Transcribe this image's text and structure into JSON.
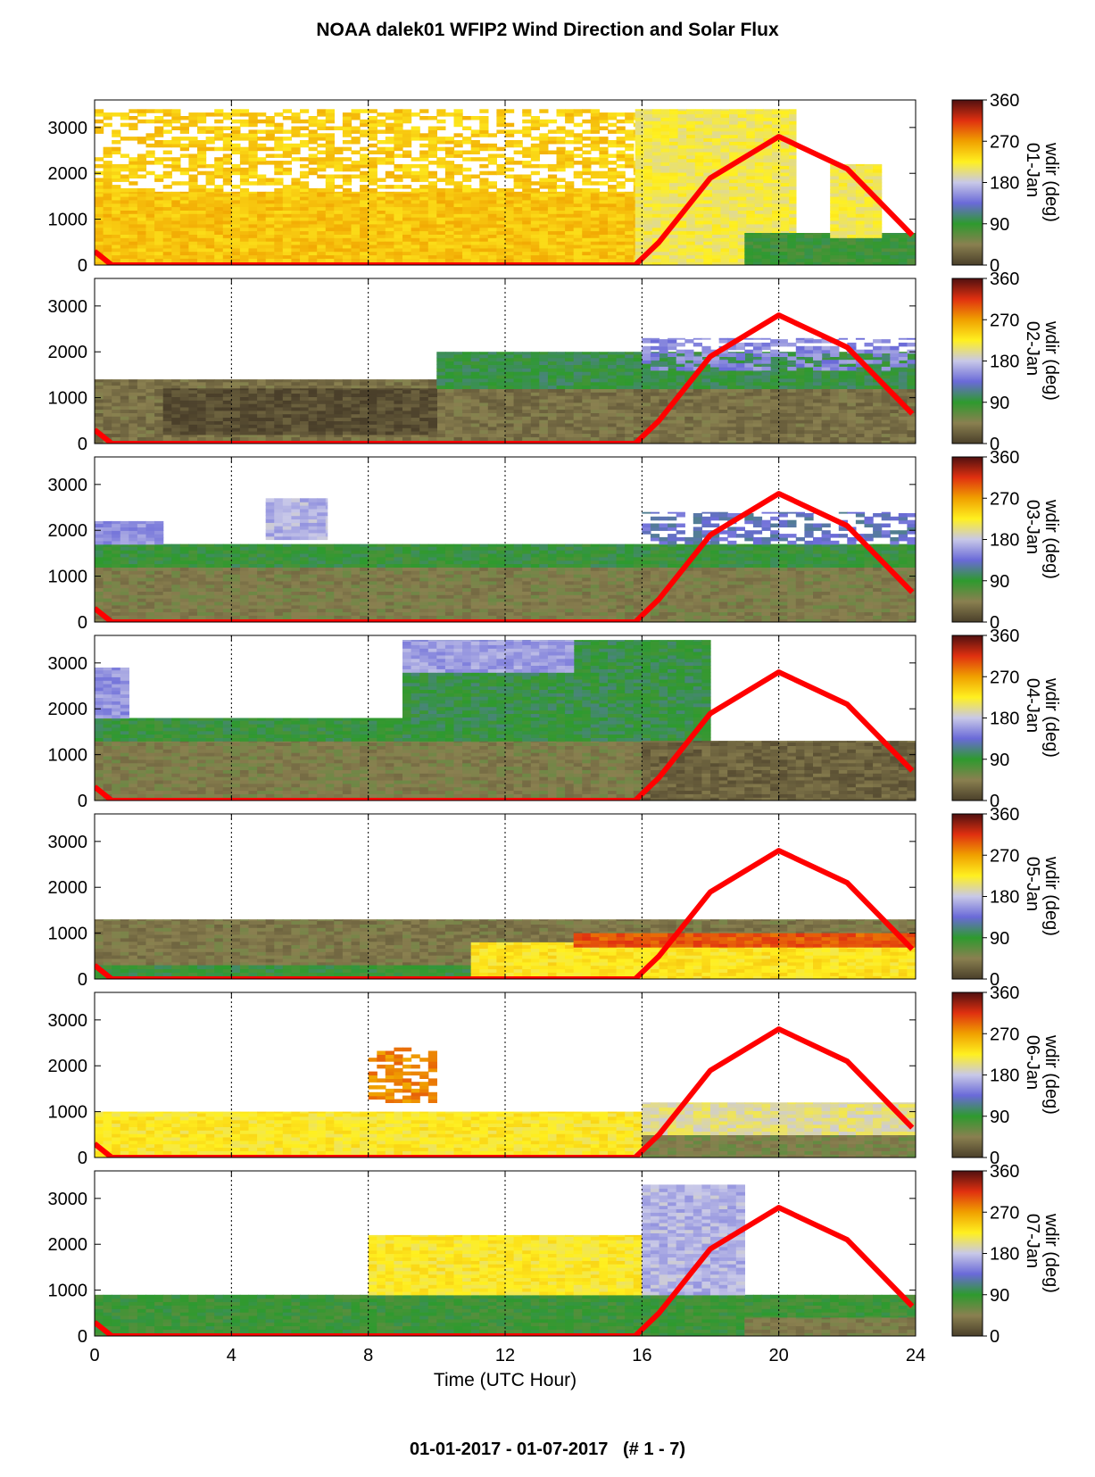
{
  "title": "NOAA dalek01 WFIP2 Wind Direction and Solar Flux",
  "footer": "01-01-2017 - 01-07-2017   (# 1 - 7)",
  "chart_data": {
    "type": "heatmap",
    "x_label": "Time (UTC Hour)",
    "x_range": [
      0,
      24
    ],
    "x_ticks": [
      0,
      4,
      8,
      12,
      16,
      20,
      24
    ],
    "y_range": [
      0,
      3600
    ],
    "y_ticks": [
      0,
      1000,
      2000,
      3000
    ],
    "vertical_grid": [
      4,
      8,
      12,
      16,
      20
    ],
    "colorbar": {
      "label": "wdir (deg)",
      "range": [
        0,
        360
      ],
      "ticks": [
        0,
        90,
        180,
        270,
        360
      ],
      "colors": [
        "#4a3f2a",
        "#8a8050",
        "#2e9a2e",
        "#6a6ad8",
        "#c8c8e8",
        "#fff020",
        "#f0a000",
        "#e03010",
        "#501010"
      ]
    },
    "solar_flux_curve": {
      "color": "#ff0000",
      "points": [
        [
          0,
          300
        ],
        [
          0.5,
          0
        ],
        [
          15.8,
          0
        ],
        [
          16.5,
          500
        ],
        [
          18,
          1900
        ],
        [
          20,
          2800
        ],
        [
          22,
          2100
        ],
        [
          23.9,
          650
        ]
      ]
    },
    "panels": [
      {
        "day": "01-Jan",
        "regions": [
          {
            "t0": 0,
            "t1": 15.8,
            "z0": 0,
            "z1": 1600,
            "deg": 250
          },
          {
            "t0": 0,
            "t1": 15.8,
            "z0": 1600,
            "z1": 3400,
            "deg": 245,
            "sparse": true
          },
          {
            "t0": 15.8,
            "t1": 20.5,
            "z0": 0,
            "z1": 3400,
            "deg": 215
          },
          {
            "t0": 19,
            "t1": 24,
            "z0": 0,
            "z1": 700,
            "deg": 85
          },
          {
            "t0": 21.5,
            "t1": 23,
            "z0": 600,
            "z1": 2200,
            "deg": 215
          }
        ]
      },
      {
        "day": "02-Jan",
        "regions": [
          {
            "t0": 0,
            "t1": 24,
            "z0": 0,
            "z1": 1400,
            "deg": 35
          },
          {
            "t0": 2,
            "t1": 10,
            "z0": 200,
            "z1": 1200,
            "deg": 10
          },
          {
            "t0": 10,
            "t1": 24,
            "z0": 1200,
            "z1": 2000,
            "deg": 95
          },
          {
            "t0": 16,
            "t1": 24,
            "z0": 1600,
            "z1": 2300,
            "deg": 150,
            "sparse": true
          }
        ]
      },
      {
        "day": "03-Jan",
        "regions": [
          {
            "t0": 0,
            "t1": 24,
            "z0": 0,
            "z1": 1200,
            "deg": 45
          },
          {
            "t0": 0,
            "t1": 24,
            "z0": 1200,
            "z1": 1700,
            "deg": 90
          },
          {
            "t0": 0,
            "t1": 2,
            "z0": 1700,
            "z1": 2200,
            "deg": 155
          },
          {
            "t0": 5,
            "t1": 6.8,
            "z0": 1800,
            "z1": 2700,
            "deg": 170
          },
          {
            "t0": 16,
            "t1": 24,
            "z0": 1700,
            "z1": 2400,
            "deg": 130,
            "sparse": true
          }
        ]
      },
      {
        "day": "04-Jan",
        "regions": [
          {
            "t0": 0,
            "t1": 24,
            "z0": 0,
            "z1": 1300,
            "deg": 45
          },
          {
            "t0": 0,
            "t1": 9,
            "z0": 1300,
            "z1": 1800,
            "deg": 90
          },
          {
            "t0": 9,
            "t1": 18,
            "z0": 1300,
            "z1": 3500,
            "deg": 95
          },
          {
            "t0": 0,
            "t1": 1,
            "z0": 1800,
            "z1": 2900,
            "deg": 155
          },
          {
            "t0": 9,
            "t1": 14,
            "z0": 2800,
            "z1": 3500,
            "deg": 160
          },
          {
            "t0": 16,
            "t1": 24,
            "z0": 0,
            "z1": 1300,
            "deg": 25
          }
        ]
      },
      {
        "day": "05-Jan",
        "regions": [
          {
            "t0": 0,
            "t1": 24,
            "z0": 0,
            "z1": 1300,
            "deg": 40
          },
          {
            "t0": 0,
            "t1": 16,
            "z0": 0,
            "z1": 300,
            "deg": 90
          },
          {
            "t0": 11,
            "t1": 24,
            "z0": 0,
            "z1": 800,
            "deg": 230
          },
          {
            "t0": 14,
            "t1": 24,
            "z0": 700,
            "z1": 1000,
            "deg": 300
          }
        ]
      },
      {
        "day": "06-Jan",
        "regions": [
          {
            "t0": 0,
            "t1": 16,
            "z0": 0,
            "z1": 1000,
            "deg": 225
          },
          {
            "t0": 16,
            "t1": 24,
            "z0": 0,
            "z1": 500,
            "deg": 50
          },
          {
            "t0": 16,
            "t1": 24,
            "z0": 500,
            "z1": 1200,
            "deg": 200
          },
          {
            "t0": 8,
            "t1": 10,
            "z0": 1200,
            "z1": 2400,
            "deg": 280,
            "sparse": true
          }
        ]
      },
      {
        "day": "07-Jan",
        "regions": [
          {
            "t0": 0,
            "t1": 24,
            "z0": 0,
            "z1": 900,
            "deg": 85
          },
          {
            "t0": 8,
            "t1": 16,
            "z0": 900,
            "z1": 2200,
            "deg": 225
          },
          {
            "t0": 16,
            "t1": 19,
            "z0": 900,
            "z1": 3300,
            "deg": 170
          },
          {
            "t0": 19,
            "t1": 24,
            "z0": 0,
            "z1": 400,
            "deg": 45
          }
        ]
      }
    ]
  }
}
